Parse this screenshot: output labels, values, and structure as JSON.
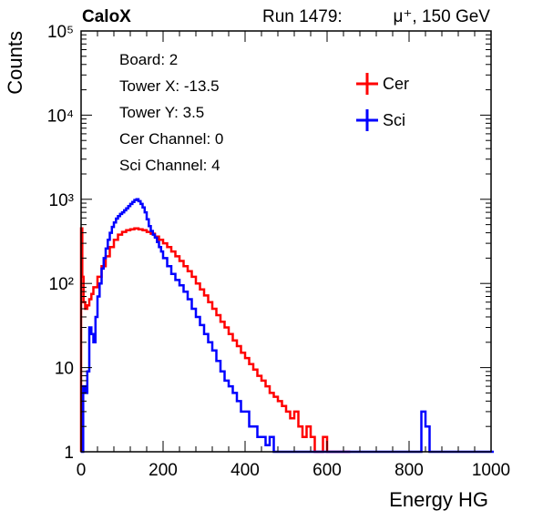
{
  "header": {
    "experiment": "CaloX",
    "run": "Run 1479:",
    "particle": "μ⁺, 150 GeV"
  },
  "info": {
    "lines": [
      "Board: 2",
      "Tower X: -13.5",
      "Tower Y: 3.5",
      "Cer Channel: 0",
      "Sci Channel: 4"
    ]
  },
  "chart_data": {
    "type": "line",
    "title": "",
    "xlabel": "Energy HG",
    "ylabel": "Counts",
    "xlim": [
      0,
      1000
    ],
    "ylim": [
      1,
      100000
    ],
    "yscale": "log",
    "grid": false,
    "legend_position": "top-right",
    "x_ticks": [
      {
        "value": 0,
        "label": "0"
      },
      {
        "value": 200,
        "label": "200"
      },
      {
        "value": 400,
        "label": "400"
      },
      {
        "value": 600,
        "label": "600"
      },
      {
        "value": 800,
        "label": "800"
      },
      {
        "value": 1000,
        "label": "1000"
      }
    ],
    "y_ticks": [
      {
        "value": 1,
        "label": "1"
      },
      {
        "value": 10,
        "label": "10"
      },
      {
        "value": 100,
        "label": "10²"
      },
      {
        "value": 1000,
        "label": "10³"
      },
      {
        "value": 10000,
        "label": "10⁴"
      },
      {
        "value": 100000,
        "label": "10⁵"
      }
    ],
    "series": [
      {
        "name": "Cer",
        "color": "#ff0000",
        "x": [
          0,
          3,
          6,
          10,
          15,
          20,
          25,
          30,
          40,
          50,
          60,
          70,
          80,
          90,
          100,
          110,
          120,
          130,
          140,
          150,
          160,
          170,
          180,
          190,
          200,
          210,
          220,
          230,
          240,
          250,
          260,
          270,
          280,
          290,
          300,
          310,
          320,
          330,
          340,
          350,
          360,
          370,
          380,
          390,
          400,
          410,
          420,
          430,
          440,
          450,
          460,
          470,
          480,
          490,
          500,
          510,
          520,
          530,
          540,
          550,
          560,
          570,
          580,
          590,
          600,
          610,
          620,
          630,
          640,
          650
        ],
        "values": [
          450,
          120,
          60,
          50,
          55,
          65,
          75,
          90,
          120,
          160,
          210,
          270,
          330,
          380,
          410,
          430,
          440,
          450,
          440,
          430,
          410,
          390,
          360,
          330,
          300,
          270,
          240,
          210,
          185,
          160,
          140,
          120,
          100,
          85,
          72,
          60,
          50,
          42,
          35,
          30,
          25,
          21,
          18,
          15,
          13,
          11,
          9.5,
          8,
          7,
          6,
          5,
          4.5,
          4,
          3.5,
          3,
          2.5,
          3,
          2,
          1.5,
          2,
          1.5,
          1,
          1,
          1.5,
          1,
          1,
          1,
          1,
          1,
          1
        ]
      },
      {
        "name": "Sci",
        "color": "#0000ff",
        "x": [
          0,
          5,
          10,
          15,
          20,
          25,
          30,
          35,
          40,
          45,
          50,
          55,
          60,
          65,
          70,
          75,
          80,
          85,
          90,
          95,
          100,
          105,
          110,
          115,
          120,
          125,
          130,
          135,
          140,
          145,
          150,
          155,
          160,
          165,
          170,
          175,
          180,
          185,
          190,
          195,
          200,
          210,
          220,
          230,
          240,
          250,
          260,
          270,
          280,
          290,
          300,
          310,
          320,
          330,
          340,
          350,
          360,
          370,
          380,
          390,
          400,
          410,
          420,
          430,
          440,
          450,
          460,
          470,
          480,
          490,
          500,
          510,
          520,
          530,
          540,
          550,
          560,
          570,
          580,
          590,
          600,
          610,
          620,
          630,
          640,
          650,
          660,
          700,
          750,
          800,
          820,
          830,
          840,
          850,
          860,
          880,
          900,
          1000
        ],
        "values": [
          1,
          6,
          5,
          9,
          30,
          25,
          20,
          40,
          70,
          100,
          150,
          200,
          260,
          330,
          400,
          470,
          530,
          590,
          630,
          670,
          700,
          740,
          780,
          830,
          880,
          930,
          980,
          1000,
          950,
          880,
          800,
          700,
          580,
          480,
          420,
          380,
          350,
          310,
          270,
          240,
          200,
          160,
          130,
          110,
          95,
          80,
          65,
          50,
          40,
          32,
          25,
          20,
          16,
          12,
          9,
          7,
          6,
          5,
          4,
          3,
          3,
          2,
          2,
          1.5,
          1.5,
          1.2,
          1.5,
          1,
          1,
          1,
          1,
          1,
          1,
          1,
          1,
          1,
          1,
          1,
          1,
          1,
          1,
          1,
          1,
          1,
          1,
          1,
          1,
          1,
          1,
          1,
          1,
          3,
          2,
          1,
          1,
          1,
          1,
          1
        ]
      }
    ]
  }
}
